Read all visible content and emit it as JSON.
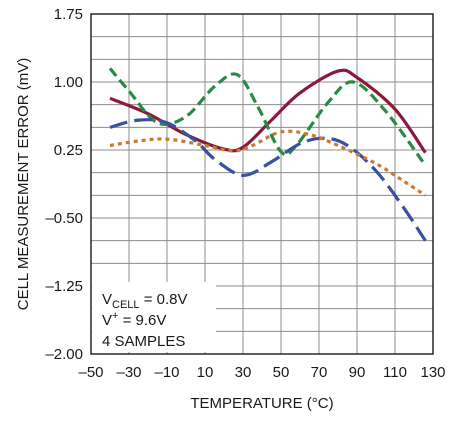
{
  "chart_data": {
    "type": "line",
    "xlabel": "TEMPERATURE (°C)",
    "ylabel": "CELL MEASUREMENT ERROR (mV)",
    "xlim": [
      -50,
      130
    ],
    "ylim": [
      -2.0,
      1.75
    ],
    "x_ticks": [
      -50,
      -30,
      -10,
      10,
      30,
      50,
      70,
      90,
      110,
      130
    ],
    "x_tick_labels": [
      "–50",
      "–30",
      "–10",
      "10",
      "30",
      "50",
      "70",
      "90",
      "110",
      "130"
    ],
    "y_ticks": [
      -2.0,
      -1.25,
      -0.5,
      0.25,
      1.0,
      1.75
    ],
    "y_tick_labels": [
      "–2.00",
      "–1.25",
      "–0.50",
      "0.25",
      "1.00",
      "1.75"
    ],
    "grid": true,
    "annotation": {
      "vcell_main": "V",
      "vcell_sub": "CELL",
      "vcell_rest": " = 0.8V",
      "vplus_main": "V",
      "vplus_sup": "+",
      "vplus_rest": " = 9.6V",
      "samples": "4 SAMPLES"
    },
    "series": [
      {
        "color": "#8b1a3a",
        "style": "solid",
        "points": [
          [
            -40,
            0.82
          ],
          [
            -20,
            0.65
          ],
          [
            0,
            0.42
          ],
          [
            20,
            0.26
          ],
          [
            30,
            0.28
          ],
          [
            45,
            0.58
          ],
          [
            60,
            0.88
          ],
          [
            80,
            1.12
          ],
          [
            90,
            1.05
          ],
          [
            110,
            0.7
          ],
          [
            126,
            0.22
          ]
        ]
      },
      {
        "color": "#2a8a45",
        "style": "dashed",
        "points": [
          [
            -40,
            1.15
          ],
          [
            -30,
            0.9
          ],
          [
            -15,
            0.55
          ],
          [
            0,
            0.62
          ],
          [
            15,
            0.95
          ],
          [
            27,
            1.08
          ],
          [
            38,
            0.72
          ],
          [
            50,
            0.23
          ],
          [
            58,
            0.3
          ],
          [
            75,
            0.78
          ],
          [
            88,
            1.0
          ],
          [
            105,
            0.68
          ],
          [
            126,
            0.08
          ]
        ]
      },
      {
        "color": "#3a50a0",
        "style": "longdash",
        "points": [
          [
            -40,
            0.5
          ],
          [
            -25,
            0.58
          ],
          [
            -10,
            0.55
          ],
          [
            5,
            0.35
          ],
          [
            15,
            0.15
          ],
          [
            30,
            -0.03
          ],
          [
            45,
            0.12
          ],
          [
            60,
            0.32
          ],
          [
            73,
            0.38
          ],
          [
            85,
            0.3
          ],
          [
            100,
            0.02
          ],
          [
            115,
            -0.4
          ],
          [
            126,
            -0.75
          ]
        ]
      },
      {
        "color": "#c57a35",
        "style": "dotted",
        "points": [
          [
            -40,
            0.3
          ],
          [
            -25,
            0.35
          ],
          [
            -10,
            0.37
          ],
          [
            10,
            0.3
          ],
          [
            25,
            0.24
          ],
          [
            35,
            0.3
          ],
          [
            50,
            0.45
          ],
          [
            65,
            0.42
          ],
          [
            80,
            0.3
          ],
          [
            100,
            0.1
          ],
          [
            115,
            -0.1
          ],
          [
            126,
            -0.25
          ]
        ]
      }
    ]
  }
}
